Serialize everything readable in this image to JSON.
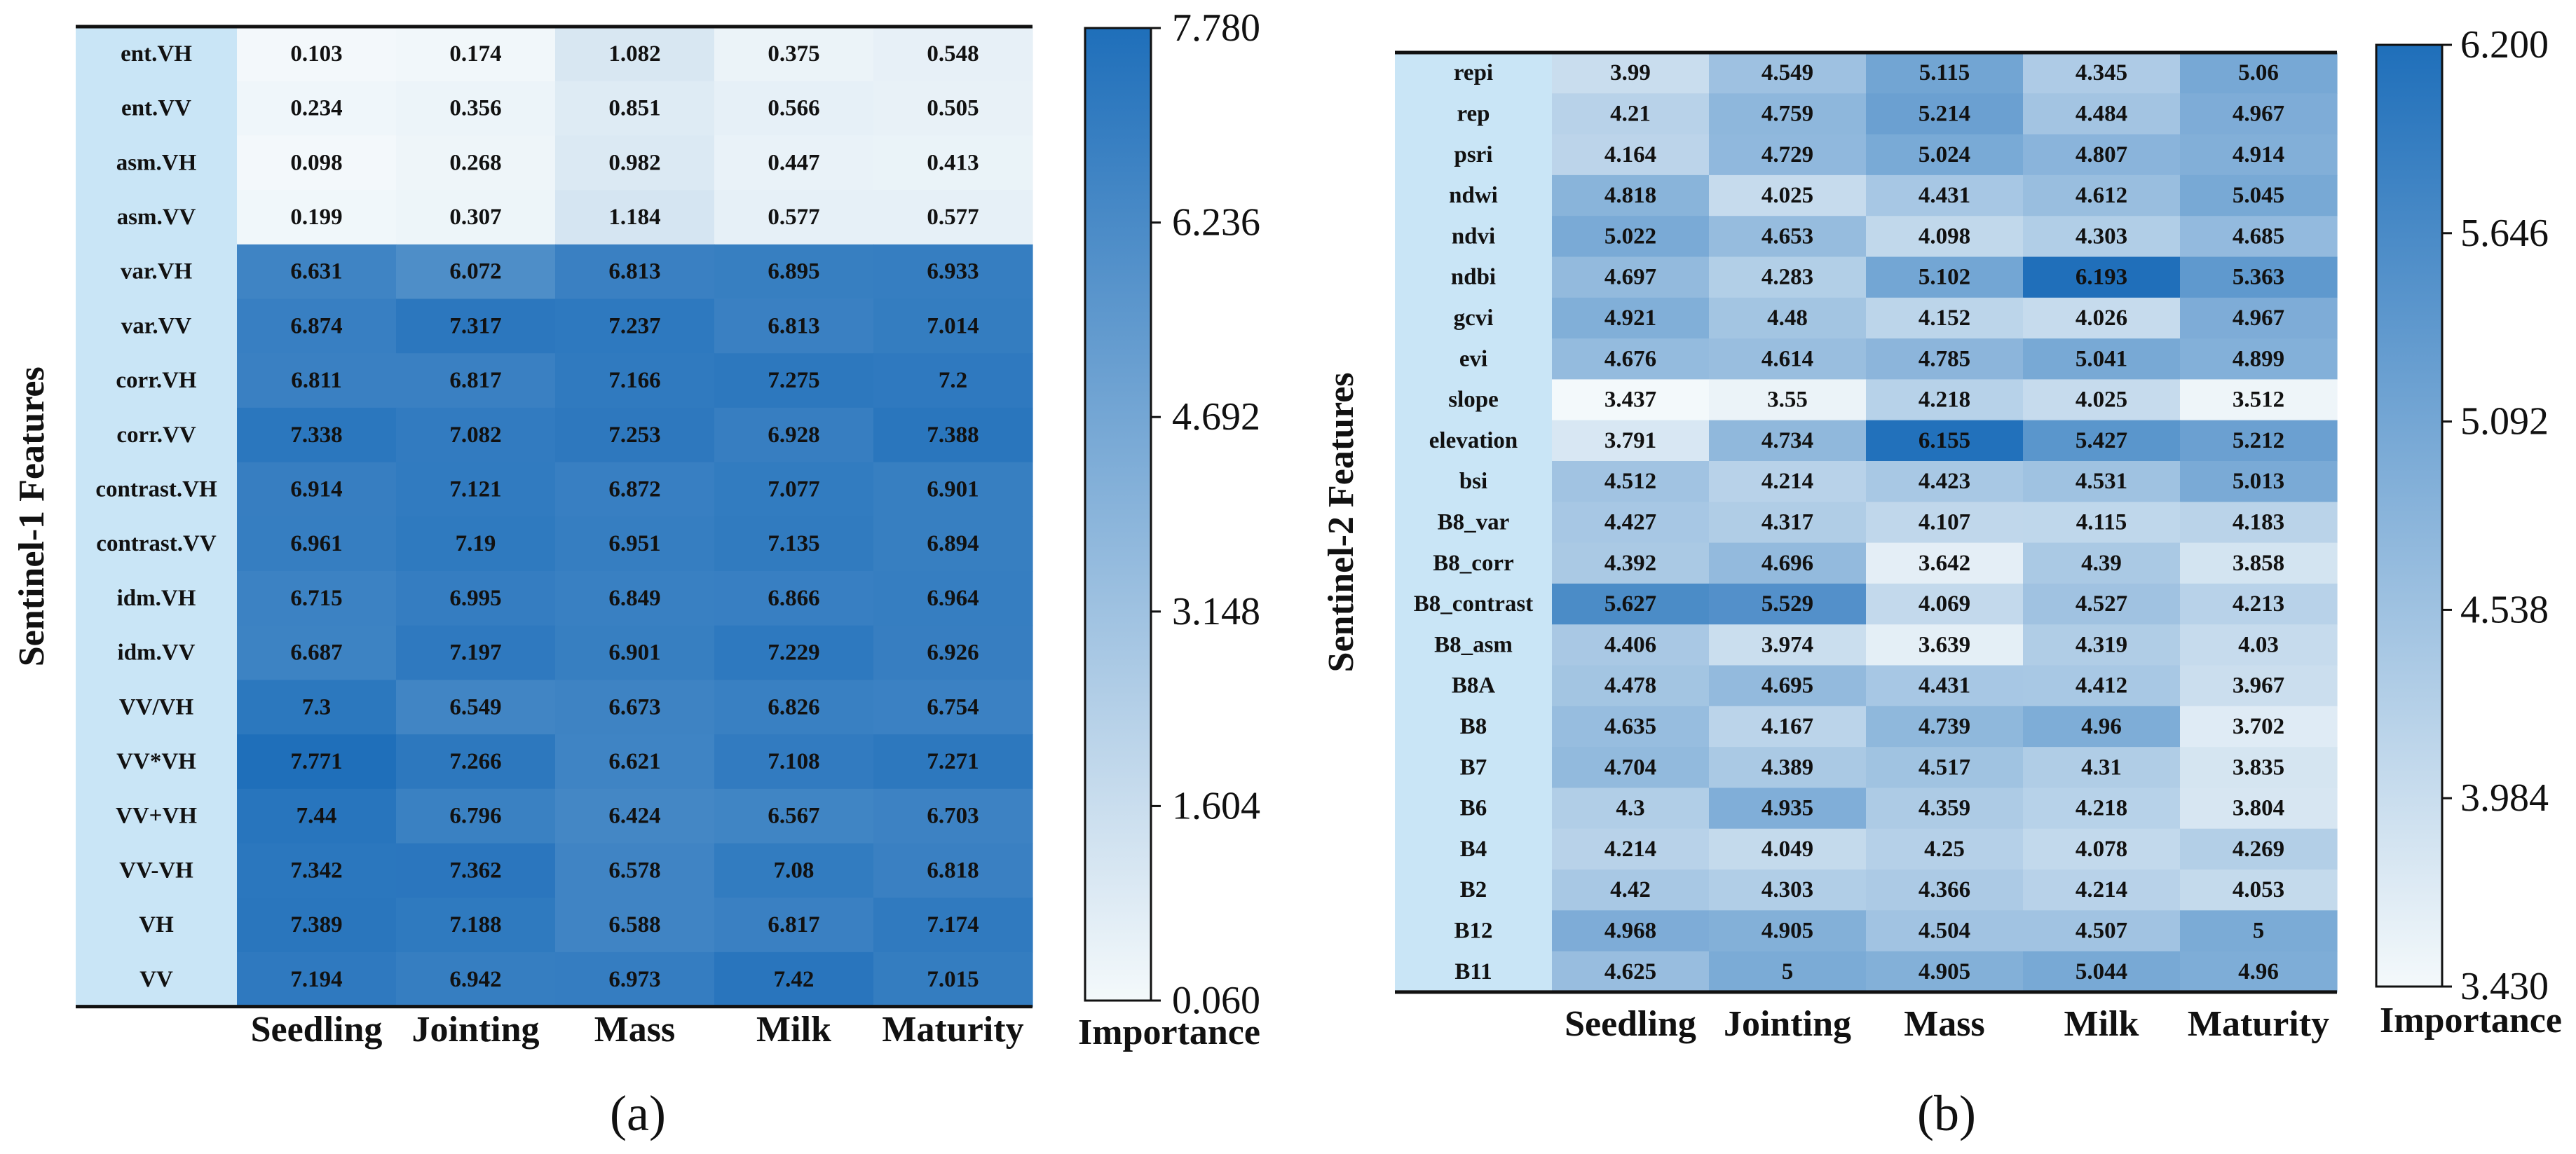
{
  "colors": {
    "label_column": "#c9e5f6",
    "scale_low": "#f4f9fb",
    "scale_high": "#1f6fba"
  },
  "chart_data": [
    {
      "type": "heatmap",
      "panel": "(a)",
      "ylabel": "Sentinel-1 Features",
      "colorbar_title": "Importance",
      "columns": [
        "Seedling",
        "Jointing",
        "Mass",
        "Milk",
        "Maturity"
      ],
      "rows": [
        "ent.VH",
        "ent.VV",
        "asm.VH",
        "asm.VV",
        "var.VH",
        "var.VV",
        "corr.VH",
        "corr.VV",
        "contrast.VH",
        "contrast.VV",
        "idm.VH",
        "idm.VV",
        "VV/VH",
        "VV*VH",
        "VV+VH",
        "VV-VH",
        "VH",
        "VV"
      ],
      "values": [
        [
          "0.103",
          "0.174",
          "1.082",
          "0.375",
          "0.548"
        ],
        [
          "0.234",
          "0.356",
          "0.851",
          "0.566",
          "0.505"
        ],
        [
          "0.098",
          "0.268",
          "0.982",
          "0.447",
          "0.413"
        ],
        [
          "0.199",
          "0.307",
          "1.184",
          "0.577",
          "0.577"
        ],
        [
          "6.631",
          "6.072",
          "6.813",
          "6.895",
          "6.933"
        ],
        [
          "6.874",
          "7.317",
          "7.237",
          "6.813",
          "7.014"
        ],
        [
          "6.811",
          "6.817",
          "7.166",
          "7.275",
          "7.2"
        ],
        [
          "7.338",
          "7.082",
          "7.253",
          "6.928",
          "7.388"
        ],
        [
          "6.914",
          "7.121",
          "6.872",
          "7.077",
          "6.901"
        ],
        [
          "6.961",
          "7.19",
          "6.951",
          "7.135",
          "6.894"
        ],
        [
          "6.715",
          "6.995",
          "6.849",
          "6.866",
          "6.964"
        ],
        [
          "6.687",
          "7.197",
          "6.901",
          "7.229",
          "6.926"
        ],
        [
          "7.3",
          "6.549",
          "6.673",
          "6.826",
          "6.754"
        ],
        [
          "7.771",
          "7.266",
          "6.621",
          "7.108",
          "7.271"
        ],
        [
          "7.44",
          "6.796",
          "6.424",
          "6.567",
          "6.703"
        ],
        [
          "7.342",
          "7.362",
          "6.578",
          "7.08",
          "6.818"
        ],
        [
          "7.389",
          "7.188",
          "6.588",
          "6.817",
          "7.174"
        ],
        [
          "7.194",
          "6.942",
          "6.973",
          "7.42",
          "7.015"
        ]
      ],
      "colorbar_range": [
        0.06,
        7.78
      ],
      "colorbar_ticks": [
        "7.780",
        "6.236",
        "4.692",
        "3.148",
        "1.604",
        "0.060"
      ]
    },
    {
      "type": "heatmap",
      "panel": "(b)",
      "ylabel": "Sentinel-2 Features",
      "colorbar_title": "Importance",
      "columns": [
        "Seedling",
        "Jointing",
        "Mass",
        "Milk",
        "Maturity"
      ],
      "rows": [
        "repi",
        "rep",
        "psri",
        "ndwi",
        "ndvi",
        "ndbi",
        "gcvi",
        "evi",
        "slope",
        "elevation",
        "bsi",
        "B8_var",
        "B8_corr",
        "B8_contrast",
        "B8_asm",
        "B8A",
        "B8",
        "B7",
        "B6",
        "B4",
        "B2",
        "B12",
        "B11"
      ],
      "values": [
        [
          "3.99",
          "4.549",
          "5.115",
          "4.345",
          "5.06"
        ],
        [
          "4.21",
          "4.759",
          "5.214",
          "4.484",
          "4.967"
        ],
        [
          "4.164",
          "4.729",
          "5.024",
          "4.807",
          "4.914"
        ],
        [
          "4.818",
          "4.025",
          "4.431",
          "4.612",
          "5.045"
        ],
        [
          "5.022",
          "4.653",
          "4.098",
          "4.303",
          "4.685"
        ],
        [
          "4.697",
          "4.283",
          "5.102",
          "6.193",
          "5.363"
        ],
        [
          "4.921",
          "4.48",
          "4.152",
          "4.026",
          "4.967"
        ],
        [
          "4.676",
          "4.614",
          "4.785",
          "5.041",
          "4.899"
        ],
        [
          "3.437",
          "3.55",
          "4.218",
          "4.025",
          "3.512"
        ],
        [
          "3.791",
          "4.734",
          "6.155",
          "5.427",
          "5.212"
        ],
        [
          "4.512",
          "4.214",
          "4.423",
          "4.531",
          "5.013"
        ],
        [
          "4.427",
          "4.317",
          "4.107",
          "4.115",
          "4.183"
        ],
        [
          "4.392",
          "4.696",
          "3.642",
          "4.39",
          "3.858"
        ],
        [
          "5.627",
          "5.529",
          "4.069",
          "4.527",
          "4.213"
        ],
        [
          "4.406",
          "3.974",
          "3.639",
          "4.319",
          "4.03"
        ],
        [
          "4.478",
          "4.695",
          "4.431",
          "4.412",
          "3.967"
        ],
        [
          "4.635",
          "4.167",
          "4.739",
          "4.96",
          "3.702"
        ],
        [
          "4.704",
          "4.389",
          "4.517",
          "4.31",
          "3.835"
        ],
        [
          "4.3",
          "4.935",
          "4.359",
          "4.218",
          "3.804"
        ],
        [
          "4.214",
          "4.049",
          "4.25",
          "4.078",
          "4.269"
        ],
        [
          "4.42",
          "4.303",
          "4.366",
          "4.214",
          "4.053"
        ],
        [
          "4.968",
          "4.905",
          "4.504",
          "4.507",
          "5"
        ],
        [
          "4.625",
          "5",
          "4.905",
          "5.044",
          "4.96"
        ]
      ],
      "colorbar_range": [
        3.43,
        6.2
      ],
      "colorbar_ticks": [
        "6.200",
        "5.646",
        "5.092",
        "4.538",
        "3.984",
        "3.430"
      ]
    }
  ]
}
